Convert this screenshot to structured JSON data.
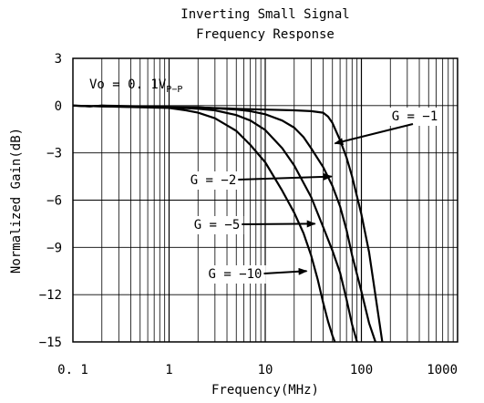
{
  "chart_data": {
    "type": "line",
    "title": [
      "Inverting Small Signal",
      "Frequency Response"
    ],
    "xlabel": "Frequency(MHz)",
    "ylabel": "Normalized Gain(dB)",
    "xscale": "log",
    "xlim": [
      0.1,
      1000
    ],
    "ylim": [
      -15,
      3
    ],
    "xticks": [
      0.1,
      1,
      10,
      100,
      1000
    ],
    "xtick_labels": [
      "0. 1",
      "1",
      "10",
      "100",
      "1000"
    ],
    "yticks": [
      3,
      0,
      -3,
      -6,
      -9,
      -12,
      -15
    ],
    "ytick_labels": [
      "3",
      "0",
      "−3",
      "−6",
      "−9",
      "−12",
      "−15"
    ],
    "grid": true,
    "condition": {
      "base": "Vo = 0. 1V",
      "sub": "P−P"
    },
    "series": [
      {
        "name": "G = −1",
        "x": [
          0.1,
          0.15,
          0.2,
          0.3,
          0.5,
          1,
          2,
          5,
          10,
          20,
          30,
          40,
          45,
          50,
          60,
          70,
          80,
          100,
          120,
          150,
          165
        ],
        "y": [
          0,
          -0.05,
          0,
          -0.05,
          -0.08,
          -0.1,
          -0.12,
          -0.2,
          -0.25,
          -0.3,
          -0.35,
          -0.45,
          -0.7,
          -1.1,
          -2.2,
          -3.3,
          -4.5,
          -6.9,
          -9.3,
          -13.3,
          -15
        ]
      },
      {
        "name": "G = −2",
        "x": [
          0.1,
          0.15,
          0.2,
          0.5,
          1,
          2,
          5,
          7,
          10,
          15,
          20,
          25,
          30,
          40,
          50,
          60,
          70,
          80,
          100,
          120,
          140
        ],
        "y": [
          0,
          -0.05,
          0,
          -0.05,
          -0.08,
          -0.1,
          -0.25,
          -0.35,
          -0.55,
          -0.95,
          -1.4,
          -2,
          -2.7,
          -3.9,
          -5.1,
          -6.4,
          -7.9,
          -9.5,
          -11.8,
          -13.8,
          -15
        ]
      },
      {
        "name": "G = −5",
        "x": [
          0.1,
          0.2,
          0.5,
          1,
          2,
          3,
          5,
          7,
          10,
          15,
          20,
          30,
          40,
          50,
          60,
          70,
          80,
          90
        ],
        "y": [
          0,
          -0.05,
          -0.08,
          -0.1,
          -0.2,
          -0.3,
          -0.6,
          -0.95,
          -1.55,
          -2.7,
          -3.8,
          -5.8,
          -7.7,
          -9.2,
          -10.6,
          -12.3,
          -13.9,
          -15
        ]
      },
      {
        "name": "G = −10",
        "x": [
          0.1,
          0.2,
          0.5,
          1,
          1.5,
          2,
          3,
          5,
          7,
          10,
          15,
          20,
          25,
          30,
          35,
          40,
          45,
          50,
          53
        ],
        "y": [
          0,
          -0.05,
          -0.1,
          -0.15,
          -0.3,
          -0.45,
          -0.8,
          -1.6,
          -2.5,
          -3.6,
          -5.4,
          -6.8,
          -8.1,
          -9.5,
          -11,
          -12.5,
          -13.7,
          -14.6,
          -15
        ]
      }
    ],
    "annotations": [
      {
        "text": "G = −1",
        "series": 0,
        "arrow_to": [
          53,
          -2.4
        ]
      },
      {
        "text": "G = −2",
        "series": 1,
        "arrow_to": [
          49,
          -4.5
        ]
      },
      {
        "text": "G = −5",
        "series": 2,
        "arrow_to": [
          33,
          -7.5
        ]
      },
      {
        "text": "G = −10",
        "series": 3,
        "arrow_to": [
          27,
          -10.5
        ]
      }
    ]
  }
}
